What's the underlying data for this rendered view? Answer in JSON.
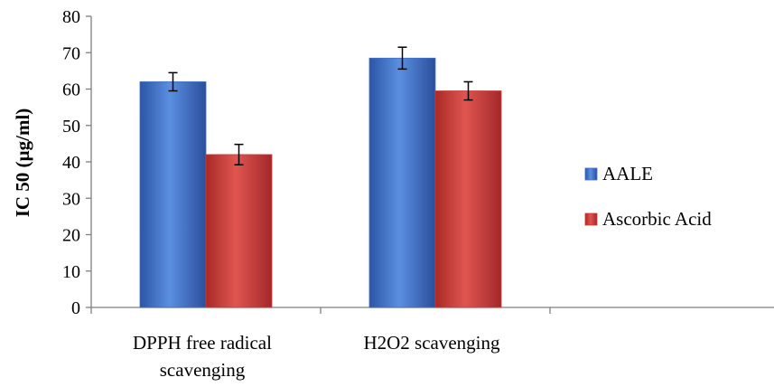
{
  "chart_data": {
    "type": "bar",
    "title": "",
    "ylabel": "IC 50 (µg/ml)",
    "xlabel": "",
    "ylim": [
      0,
      80
    ],
    "ytick_step": 10,
    "yticks": [
      "0",
      "10",
      "20",
      "30",
      "40",
      "50",
      "60",
      "70",
      "80"
    ],
    "categories": [
      {
        "lines": [
          "DPPH free radical",
          "scavenging"
        ]
      },
      {
        "lines": [
          "H2O2 scavenging"
        ]
      }
    ],
    "series": [
      {
        "name": "AALE",
        "color": "#3E6FC6",
        "values": [
          62,
          68.5
        ],
        "errors": [
          2.5,
          3
        ]
      },
      {
        "name": "Ascorbic Acid",
        "color": "#CD3B36",
        "values": [
          42,
          59.5
        ],
        "errors": [
          2.8,
          2.5
        ]
      }
    ],
    "grid": false,
    "legend_position": "right"
  }
}
